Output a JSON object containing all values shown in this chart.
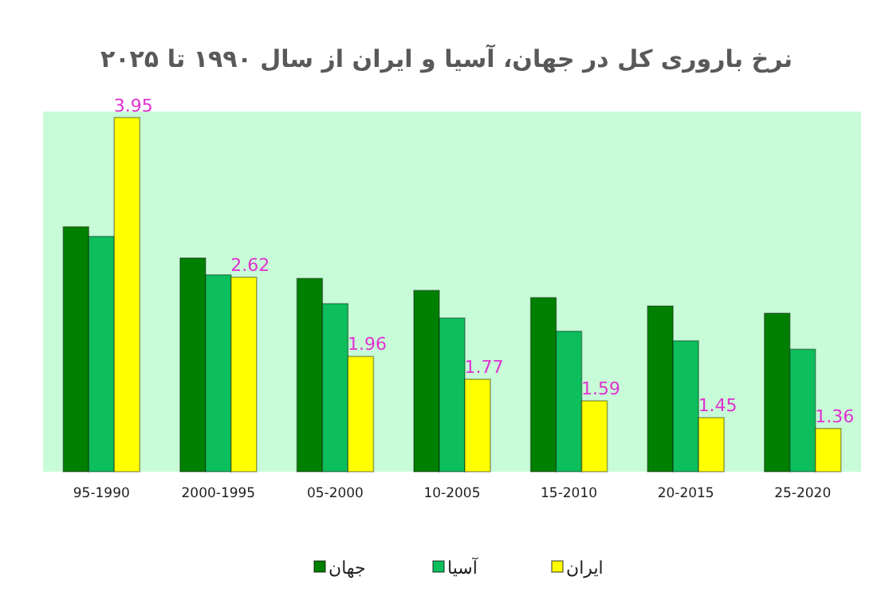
{
  "chart_data": {
    "type": "bar",
    "title": "نرخ باروری کل در جهان، آسیا و ایران از سال ۱۹۹۰ تا ۲۰۲۵",
    "categories": [
      "95-1990",
      "2000-1995",
      "05-2000",
      "10-2005",
      "15-2010",
      "20-2015",
      "25-2020"
    ],
    "ylim": [
      1,
      4
    ],
    "legend": "bottom",
    "series": [
      {
        "name": "جهان",
        "color": "#008000",
        "values": [
          3.04,
          2.78,
          2.61,
          2.51,
          2.45,
          2.38,
          2.32
        ]
      },
      {
        "name": "آسیا",
        "color": "#0cbf5c",
        "values": [
          2.96,
          2.64,
          2.4,
          2.28,
          2.17,
          2.09,
          2.02
        ]
      },
      {
        "name": "ایران",
        "color": "#ffff00",
        "values": [
          3.95,
          2.62,
          1.96,
          1.77,
          1.59,
          1.45,
          1.36
        ],
        "value_labels": [
          "3.95",
          "2.62",
          "1.96",
          "1.77",
          "1.59",
          "1.45",
          "1.36"
        ]
      }
    ]
  }
}
